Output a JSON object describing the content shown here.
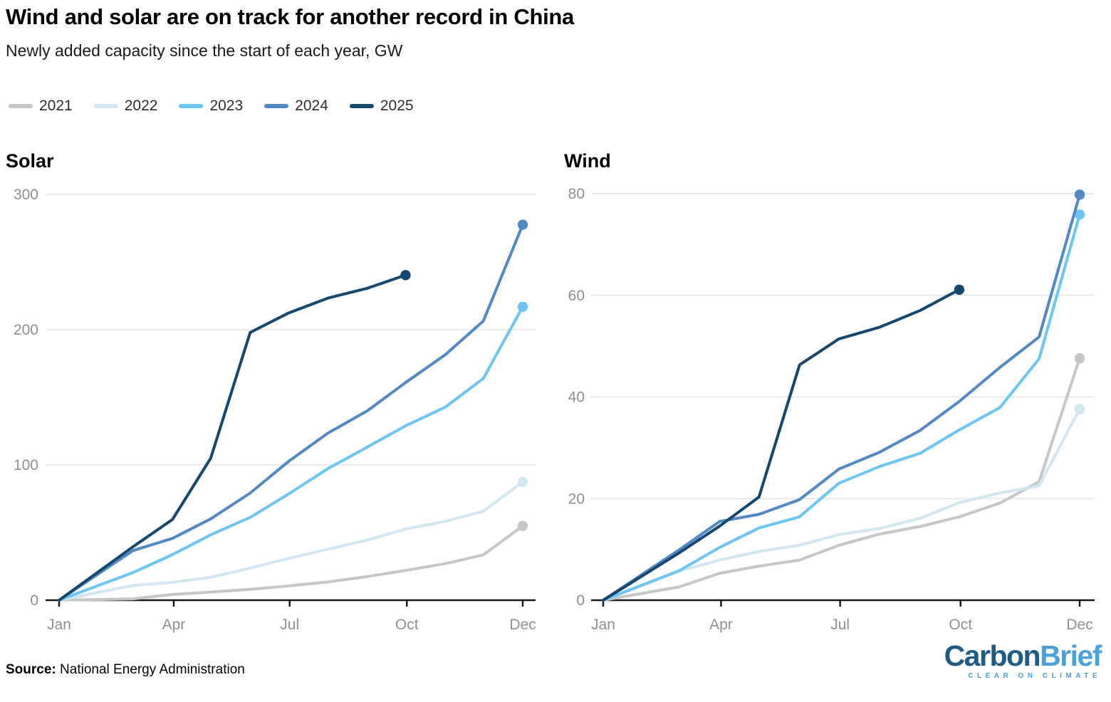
{
  "header": {
    "title": "Wind and solar are on track for another record in China",
    "subtitle": "Newly added capacity since the start of each year, GW"
  },
  "legend": {
    "items": [
      {
        "label": "2021",
        "color": "#c6c6c6"
      },
      {
        "label": "2022",
        "color": "#d0e6f1"
      },
      {
        "label": "2023",
        "color": "#6cc5f3"
      },
      {
        "label": "2024",
        "color": "#5289c5"
      },
      {
        "label": "2025",
        "color": "#15476f"
      }
    ]
  },
  "chart_data": [
    {
      "type": "line",
      "title": "Solar",
      "unit": "GW",
      "ylim": [
        0,
        300
      ],
      "y_ticks": [
        0,
        100,
        200,
        300
      ],
      "grid": "horizontal",
      "days_total": 364,
      "x_ticks": [
        {
          "label": "Jan",
          "day": 0
        },
        {
          "label": "Apr",
          "day": 90
        },
        {
          "label": "Jul",
          "day": 181
        },
        {
          "label": "Oct",
          "day": 273
        },
        {
          "label": "Dec",
          "day": 364
        }
      ],
      "series": [
        {
          "name": "2021",
          "color": "#c6c6c6",
          "days": [
            0,
            58,
            89,
            119,
            150,
            180,
            211,
            242,
            272,
            303,
            333,
            364
          ],
          "values": [
            0,
            1.0,
            4.2,
            6.0,
            8.0,
            10.5,
            13.5,
            17.5,
            22.0,
            27.0,
            33.5,
            54.9
          ]
        },
        {
          "name": "2022",
          "color": "#d0e6f1",
          "days": [
            0,
            58,
            89,
            119,
            150,
            180,
            211,
            242,
            272,
            303,
            333,
            364
          ],
          "values": [
            0,
            10.9,
            13.2,
            16.9,
            23.7,
            30.9,
            37.7,
            44.5,
            52.6,
            58.2,
            65.7,
            87.4
          ]
        },
        {
          "name": "2023",
          "color": "#6cc5f3",
          "days": [
            0,
            58,
            89,
            119,
            150,
            180,
            211,
            242,
            272,
            303,
            333,
            364
          ],
          "values": [
            0,
            20.4,
            33.7,
            48.3,
            61.2,
            78.4,
            97.2,
            113.2,
            128.9,
            142.6,
            163.9,
            216.9
          ]
        },
        {
          "name": "2024",
          "color": "#5289c5",
          "days": [
            0,
            58,
            89,
            119,
            150,
            180,
            211,
            242,
            272,
            303,
            333,
            364
          ],
          "values": [
            0,
            36.7,
            45.7,
            60.1,
            79.2,
            102.5,
            123.5,
            140.0,
            160.9,
            181.3,
            206.3,
            277.6
          ]
        },
        {
          "name": "2025",
          "color": "#15476f",
          "days": [
            0,
            58,
            89,
            119,
            150,
            180,
            211,
            242,
            272
          ],
          "values": [
            0,
            39.5,
            59.7,
            104.9,
            197.9,
            212.2,
            223.3,
            230.6,
            240.3
          ]
        }
      ]
    },
    {
      "type": "line",
      "title": "Wind",
      "unit": "GW",
      "ylim": [
        0,
        80
      ],
      "y_ticks": [
        0,
        20,
        40,
        60,
        80
      ],
      "grid": "horizontal",
      "days_total": 364,
      "x_ticks": [
        {
          "label": "Jan",
          "day": 0
        },
        {
          "label": "Apr",
          "day": 90
        },
        {
          "label": "Jul",
          "day": 181
        },
        {
          "label": "Oct",
          "day": 273
        },
        {
          "label": "Dec",
          "day": 364
        }
      ],
      "series": [
        {
          "name": "2021",
          "color": "#c6c6c6",
          "days": [
            0,
            58,
            89,
            119,
            150,
            180,
            211,
            242,
            272,
            303,
            333,
            364
          ],
          "values": [
            0,
            2.6,
            5.3,
            6.7,
            7.9,
            10.8,
            13.0,
            14.5,
            16.4,
            19.1,
            23.3,
            47.6
          ]
        },
        {
          "name": "2022",
          "color": "#d0e6f1",
          "days": [
            0,
            58,
            89,
            119,
            150,
            180,
            211,
            242,
            272,
            303,
            333,
            364
          ],
          "values": [
            0,
            5.7,
            7.9,
            9.6,
            10.8,
            12.9,
            14.1,
            16.1,
            19.2,
            21.1,
            22.5,
            37.6
          ]
        },
        {
          "name": "2023",
          "color": "#6cc5f3",
          "days": [
            0,
            58,
            89,
            119,
            150,
            180,
            211,
            242,
            272,
            303,
            333,
            364
          ],
          "values": [
            0,
            5.8,
            10.4,
            14.2,
            16.4,
            23.0,
            26.3,
            28.9,
            33.5,
            37.9,
            47.5,
            75.9
          ]
        },
        {
          "name": "2024",
          "color": "#5289c5",
          "days": [
            0,
            58,
            89,
            119,
            150,
            180,
            211,
            242,
            272,
            303,
            333,
            364
          ],
          "values": [
            0,
            9.9,
            15.5,
            16.9,
            19.8,
            25.8,
            29.1,
            33.4,
            39.1,
            45.8,
            51.8,
            79.8
          ]
        },
        {
          "name": "2025",
          "color": "#15476f",
          "days": [
            0,
            58,
            89,
            119,
            150,
            180,
            211,
            242,
            272
          ],
          "values": [
            0,
            9.3,
            14.6,
            20.3,
            46.3,
            51.4,
            53.7,
            57.0,
            61.1
          ]
        }
      ]
    }
  ],
  "footer": {
    "source_label": "Source:",
    "source_text": " National Energy Administration",
    "logo": {
      "part1": "Carbon",
      "part2": "Brief",
      "tagline": "CLEAR ON CLIMATE"
    }
  }
}
